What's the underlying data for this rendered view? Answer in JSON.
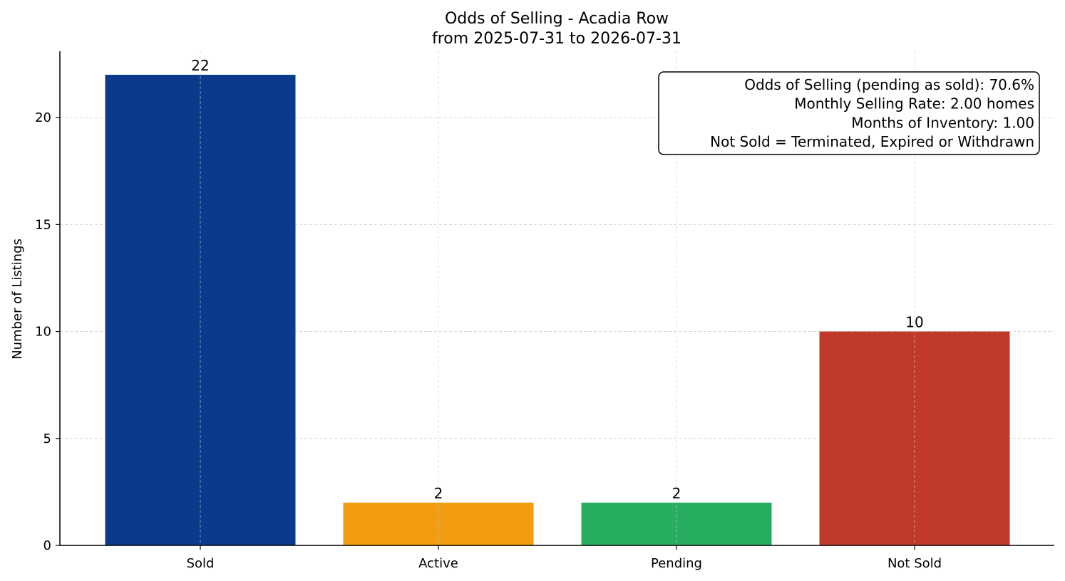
{
  "chart_data": {
    "type": "bar",
    "title": "Odds of Selling - Acadia Row",
    "subtitle": "from 2025-07-31 to 2026-07-31",
    "xlabel": "",
    "ylabel": "Number of Listings",
    "categories": [
      "Sold",
      "Active",
      "Pending",
      "Not Sold"
    ],
    "values": [
      22,
      2,
      2,
      10
    ],
    "colors": [
      "#0b3a8c",
      "#f39c12",
      "#27ae60",
      "#c0392b"
    ],
    "ylim": [
      0,
      23.1
    ],
    "yticks": [
      0,
      5,
      10,
      15,
      20
    ],
    "grid": true,
    "annotation": {
      "placement": "top-right",
      "lines": [
        "Odds of Selling (pending as sold): 70.6%",
        "Monthly Selling Rate: 2.00 homes",
        "Months of Inventory: 1.00",
        "Not Sold = Terminated, Expired or Withdrawn"
      ]
    }
  }
}
